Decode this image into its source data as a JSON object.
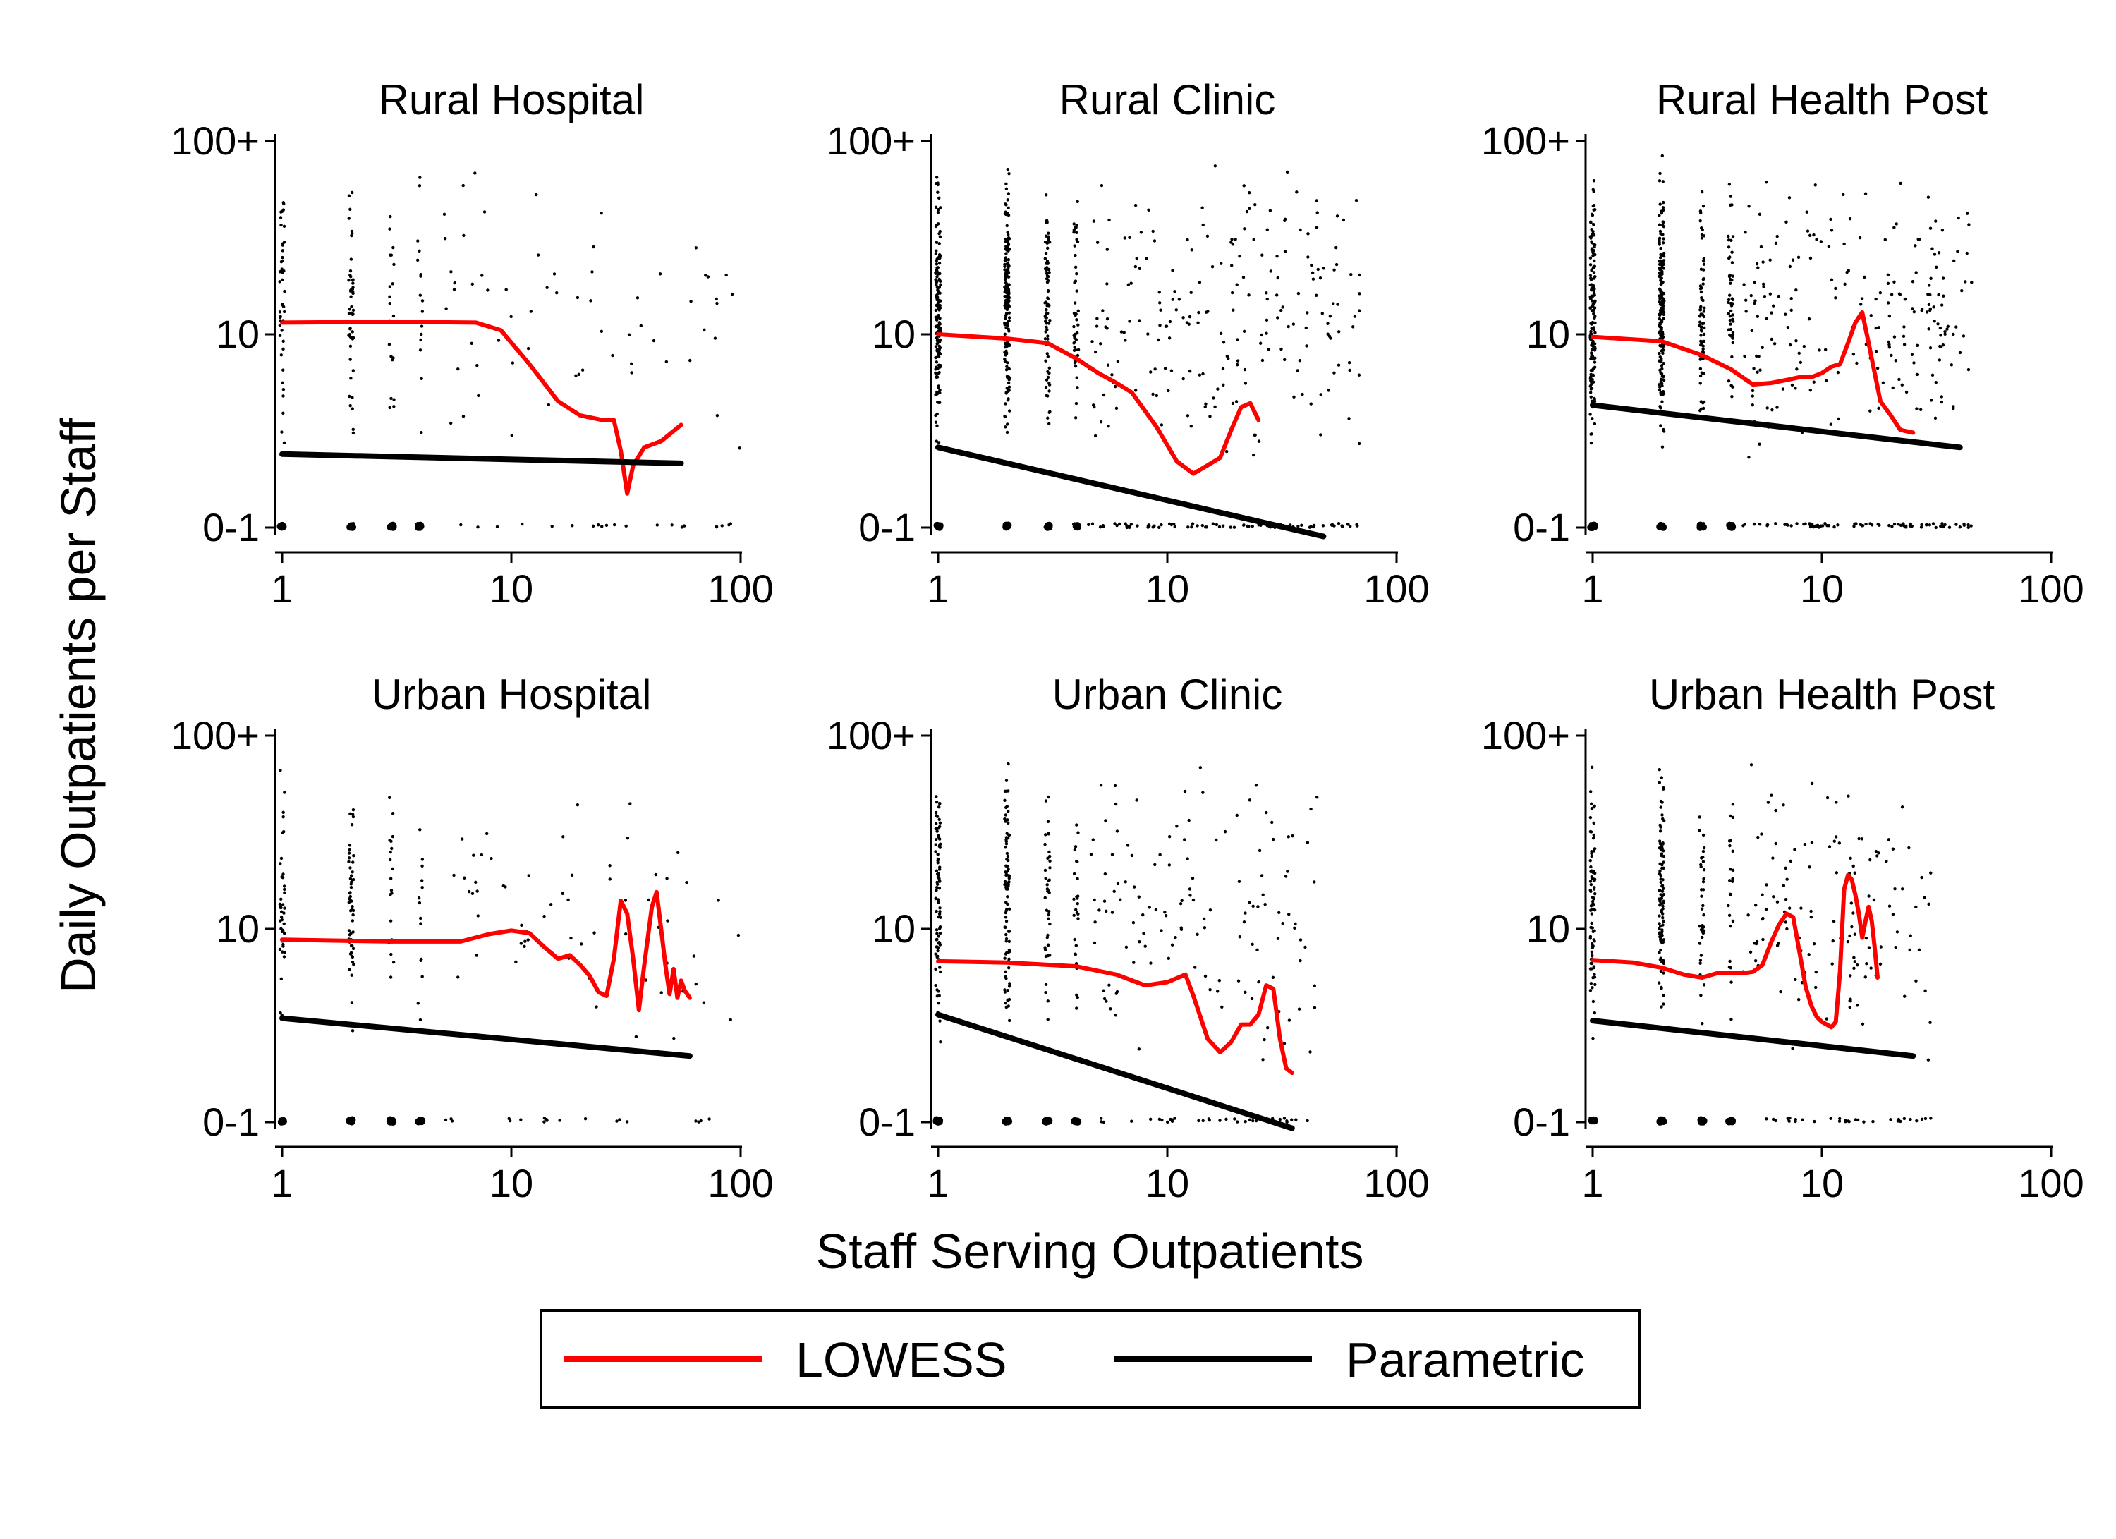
{
  "figure": {
    "xlabel": "Staff Serving Outpatients",
    "ylabel": "Daily Outpatients per Staff",
    "legend": {
      "placement": "bottom-center",
      "entries": [
        {
          "label": "LOWESS",
          "color": "#ff0000"
        },
        {
          "label": "Parametric",
          "color": "#000000"
        }
      ]
    }
  },
  "chart_data": [
    {
      "type": "scatter",
      "title": "Rural Hospital",
      "x_scale": "log",
      "y_scale": "log",
      "xlim": [
        1,
        100
      ],
      "ylim": [
        1,
        100
      ],
      "x_ticks": [
        "1",
        "10",
        "100"
      ],
      "y_ticks": [
        "0-1",
        "10",
        "100+"
      ],
      "series": [
        {
          "name": "LOWESS",
          "color": "#ff0000",
          "x": [
            1,
            3,
            7,
            9,
            12,
            16,
            20,
            25,
            28,
            30,
            32,
            34,
            38,
            45,
            55
          ],
          "y": [
            11.5,
            11.6,
            11.5,
            10.5,
            7,
            4.5,
            3.8,
            3.6,
            3.6,
            2.5,
            1.5,
            2.1,
            2.6,
            2.8,
            3.4
          ]
        },
        {
          "name": "Parametric",
          "color": "#000000",
          "x": [
            1,
            55
          ],
          "y": [
            2.4,
            2.15
          ]
        }
      ],
      "scatter": {
        "x_max": 100,
        "density": "sparse"
      }
    },
    {
      "type": "scatter",
      "title": "Rural Clinic",
      "x_scale": "log",
      "y_scale": "log",
      "xlim": [
        1,
        100
      ],
      "ylim": [
        1,
        100
      ],
      "x_ticks": [
        "1",
        "10",
        "100"
      ],
      "y_ticks": [
        "0-1",
        "10",
        "100+"
      ],
      "series": [
        {
          "name": "LOWESS",
          "color": "#ff0000",
          "x": [
            1,
            2,
            3,
            4,
            5,
            6,
            7,
            9,
            11,
            13,
            15,
            17,
            19,
            21,
            23,
            25
          ],
          "y": [
            10,
            9.5,
            9,
            7.5,
            6.3,
            5.6,
            5,
            3.3,
            2.2,
            1.9,
            2.1,
            2.3,
            3.2,
            4.2,
            4.4,
            3.6
          ]
        },
        {
          "name": "Parametric",
          "color": "#000000",
          "x": [
            1,
            48
          ],
          "y": [
            2.6,
            0.9
          ]
        }
      ],
      "scatter": {
        "x_max": 70,
        "density": "dense"
      }
    },
    {
      "type": "scatter",
      "title": "Rural Health Post",
      "x_scale": "log",
      "y_scale": "log",
      "xlim": [
        1,
        100
      ],
      "ylim": [
        1,
        100
      ],
      "x_ticks": [
        "1",
        "10",
        "100"
      ],
      "y_ticks": [
        "0-1",
        "10",
        "100+"
      ],
      "series": [
        {
          "name": "LOWESS",
          "color": "#ff0000",
          "x": [
            1,
            2,
            3,
            4,
            5,
            6,
            7,
            8,
            9,
            10,
            11,
            12,
            13,
            14,
            15,
            16,
            18,
            20,
            22,
            25
          ],
          "y": [
            9.7,
            9.2,
            7.8,
            6.6,
            5.5,
            5.6,
            5.8,
            6,
            6,
            6.3,
            6.8,
            7,
            9,
            11.5,
            13,
            9,
            4.5,
            3.8,
            3.2,
            3.1
          ]
        },
        {
          "name": "Parametric",
          "color": "#000000",
          "x": [
            1,
            40
          ],
          "y": [
            4.3,
            2.6
          ]
        }
      ],
      "scatter": {
        "x_max": 45,
        "density": "dense"
      }
    },
    {
      "type": "scatter",
      "title": "Urban Hospital",
      "x_scale": "log",
      "y_scale": "log",
      "xlim": [
        1,
        100
      ],
      "ylim": [
        1,
        100
      ],
      "x_ticks": [
        "1",
        "10",
        "100"
      ],
      "y_ticks": [
        "0-1",
        "10",
        "100+"
      ],
      "series": [
        {
          "name": "LOWESS",
          "color": "#ff0000",
          "x": [
            1,
            3,
            6,
            8,
            10,
            12,
            14,
            16,
            18,
            20,
            22,
            24,
            26,
            28,
            30,
            32,
            34,
            36,
            38,
            41,
            43,
            45,
            47,
            49,
            51,
            53,
            55,
            57,
            60
          ],
          "y": [
            8.8,
            8.6,
            8.6,
            9.4,
            9.8,
            9.5,
            8,
            7,
            7.3,
            6.5,
            5.7,
            4.7,
            4.5,
            7,
            14,
            12,
            7,
            3.8,
            6.5,
            13,
            15.5,
            10,
            6.5,
            4.6,
            6.2,
            4.4,
            5.4,
            4.8,
            4.4
          ]
        },
        {
          "name": "Parametric",
          "color": "#000000",
          "x": [
            1,
            60
          ],
          "y": [
            3.45,
            2.2
          ]
        }
      ],
      "scatter": {
        "x_max": 100,
        "density": "sparse"
      }
    },
    {
      "type": "scatter",
      "title": "Urban Clinic",
      "x_scale": "log",
      "y_scale": "log",
      "xlim": [
        1,
        100
      ],
      "ylim": [
        1,
        100
      ],
      "x_ticks": [
        "1",
        "10",
        "100"
      ],
      "y_ticks": [
        "0-1",
        "10",
        "100+"
      ],
      "series": [
        {
          "name": "LOWESS",
          "color": "#ff0000",
          "x": [
            1,
            2,
            4,
            6,
            8,
            10,
            12,
            13,
            15,
            17,
            19,
            21,
            23,
            25,
            27,
            29,
            31,
            33,
            35
          ],
          "y": [
            6.8,
            6.7,
            6.4,
            5.8,
            5.1,
            5.3,
            5.8,
            4.5,
            2.7,
            2.3,
            2.6,
            3.2,
            3.2,
            3.6,
            5.1,
            4.9,
            2.7,
            1.9,
            1.8
          ]
        },
        {
          "name": "Parametric",
          "color": "#000000",
          "x": [
            1,
            35
          ],
          "y": [
            3.6,
            0.93
          ]
        }
      ],
      "scatter": {
        "x_max": 45,
        "density": "medium"
      }
    },
    {
      "type": "scatter",
      "title": "Urban Health Post",
      "x_scale": "log",
      "y_scale": "log",
      "xlim": [
        1,
        100
      ],
      "ylim": [
        1,
        100
      ],
      "x_ticks": [
        "1",
        "10",
        "100"
      ],
      "y_ticks": [
        "0-1",
        "10",
        "100+"
      ],
      "series": [
        {
          "name": "LOWESS",
          "color": "#ff0000",
          "x": [
            1,
            1.5,
            2,
            2.5,
            3,
            3.5,
            4,
            4.5,
            5,
            5.5,
            6,
            6.5,
            7,
            7.5,
            8,
            8.5,
            9,
            9.5,
            10,
            10.5,
            11,
            11.5,
            12,
            12.5,
            13,
            13.5,
            14,
            14.5,
            15,
            15.5,
            16,
            16.5,
            17,
            17.5
          ],
          "y": [
            6.9,
            6.7,
            6.3,
            5.8,
            5.6,
            5.9,
            5.9,
            5.9,
            6,
            6.5,
            8.5,
            10.5,
            12,
            11.5,
            7.5,
            5,
            4,
            3.5,
            3.3,
            3.2,
            3.1,
            3.3,
            6,
            16,
            19,
            18,
            15,
            12,
            9,
            11,
            13,
            11,
            8,
            5.6
          ]
        },
        {
          "name": "Parametric",
          "color": "#000000",
          "x": [
            1,
            25
          ],
          "y": [
            3.35,
            2.2
          ]
        }
      ],
      "scatter": {
        "x_max": 30,
        "density": "medium"
      }
    }
  ]
}
